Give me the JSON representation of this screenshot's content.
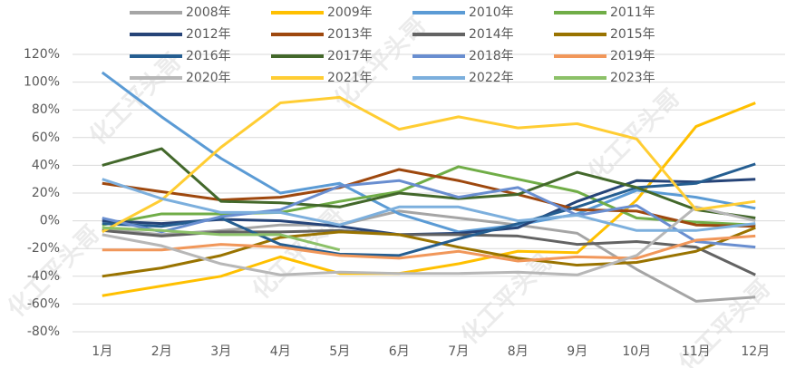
{
  "chart_data": {
    "type": "line",
    "watermark": "化工平头哥",
    "categories": [
      "1月",
      "2月",
      "3月",
      "4月",
      "5月",
      "6月",
      "7月",
      "8月",
      "9月",
      "10月",
      "11月",
      "12月"
    ],
    "ylim": [
      -80,
      120
    ],
    "yticks": [
      {
        "value": -80,
        "label": "-80%"
      },
      {
        "value": -60,
        "label": "-60%"
      },
      {
        "value": -40,
        "label": "-40%"
      },
      {
        "value": -20,
        "label": "-20%"
      },
      {
        "value": 0,
        "label": "0%"
      },
      {
        "value": 20,
        "label": "20%"
      },
      {
        "value": 40,
        "label": "40%"
      },
      {
        "value": 60,
        "label": "60%"
      },
      {
        "value": 80,
        "label": "80%"
      },
      {
        "value": 100,
        "label": "100%"
      },
      {
        "value": 120,
        "label": "120%"
      }
    ],
    "grid": true,
    "legend": "top",
    "series": [
      {
        "name": "2008年",
        "color": "#a5a5a5",
        "values": [
          -6,
          -10,
          -7,
          -3,
          -3,
          7,
          2,
          -3,
          -9,
          -35,
          -58,
          -55
        ]
      },
      {
        "name": "2009年",
        "color": "#ffc000",
        "values": [
          -54,
          -47,
          -40,
          -26,
          -38,
          -38,
          -31,
          -22,
          -23,
          15,
          68,
          85
        ]
      },
      {
        "name": "2010年",
        "color": "#5b9bd5",
        "values": [
          107,
          75,
          45,
          20,
          27,
          5,
          -8,
          -3,
          5,
          22,
          17,
          9
        ]
      },
      {
        "name": "2011年",
        "color": "#70ad47",
        "values": [
          -3,
          5,
          5,
          6,
          14,
          21,
          39,
          30,
          21,
          2,
          -1,
          -3
        ]
      },
      {
        "name": "2012年",
        "color": "#264478",
        "values": [
          0,
          -2,
          1,
          0,
          -4,
          -10,
          -9,
          -5,
          14,
          29,
          28,
          30
        ]
      },
      {
        "name": "2013年",
        "color": "#9e480e",
        "values": [
          27,
          21,
          15,
          17,
          24,
          37,
          29,
          19,
          8,
          7,
          -3,
          -4
        ]
      },
      {
        "name": "2014年",
        "color": "#636363",
        "values": [
          -7,
          -11,
          -8,
          -8,
          -7,
          -10,
          -10,
          -11,
          -17,
          -15,
          -19,
          -39
        ]
      },
      {
        "name": "2015年",
        "color": "#997300",
        "values": [
          -40,
          -34,
          -25,
          -12,
          -8,
          -10,
          -19,
          -27,
          -32,
          -30,
          -22,
          -5
        ]
      },
      {
        "name": "2016年",
        "color": "#255e91",
        "values": [
          -2,
          -4,
          2,
          -17,
          -24,
          -25,
          -13,
          -2,
          10,
          24,
          27,
          41
        ]
      },
      {
        "name": "2017年",
        "color": "#43682b",
        "values": [
          40,
          52,
          14,
          13,
          10,
          20,
          16,
          19,
          35,
          24,
          8,
          2
        ]
      },
      {
        "name": "2018年",
        "color": "#698ed0",
        "values": [
          2,
          -8,
          3,
          8,
          25,
          29,
          17,
          24,
          4,
          11,
          -15,
          -19
        ]
      },
      {
        "name": "2019年",
        "color": "#f1975a",
        "values": [
          -21,
          -21,
          -17,
          -19,
          -25,
          -27,
          -22,
          -29,
          -26,
          -27,
          -14,
          -11
        ]
      },
      {
        "name": "2020年",
        "color": "#b7b7b7",
        "values": [
          -10,
          -18,
          -31,
          -39,
          -37,
          -38,
          -38,
          -37,
          -39,
          -25,
          10,
          0
        ]
      },
      {
        "name": "2021年",
        "color": "#ffcd33",
        "values": [
          -8,
          15,
          53,
          85,
          89,
          66,
          75,
          67,
          70,
          59,
          8,
          14
        ]
      },
      {
        "name": "2022年",
        "color": "#7cafdd",
        "values": [
          30,
          16,
          6,
          6,
          -3,
          10,
          10,
          0,
          4,
          -7,
          -7,
          -2
        ]
      },
      {
        "name": "2023年",
        "color": "#8cc168",
        "values": [
          -5,
          -7,
          -10,
          -10,
          -21,
          null,
          null,
          null,
          null,
          null,
          null,
          null
        ]
      }
    ]
  }
}
